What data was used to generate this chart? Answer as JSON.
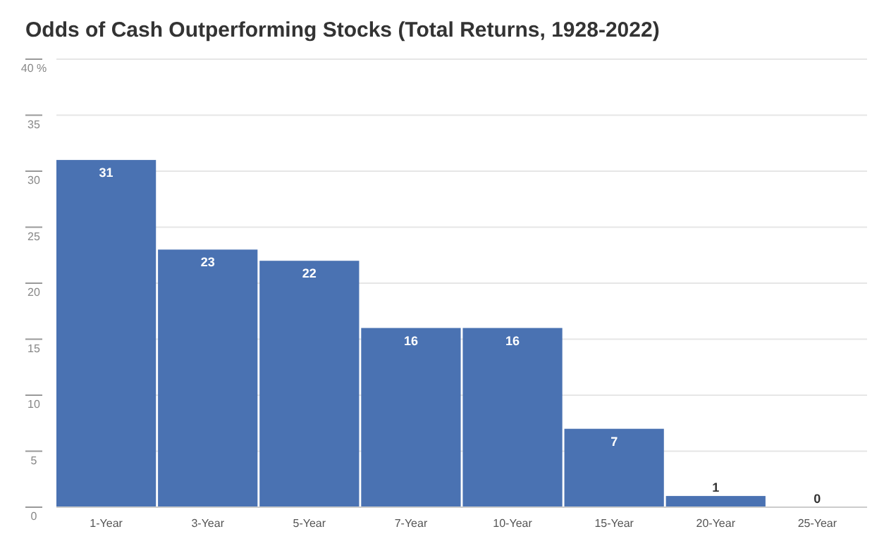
{
  "chart_data": {
    "type": "bar",
    "title": "Odds of Cash Outperforming Stocks (Total Returns, 1928-2022)",
    "categories": [
      "1-Year",
      "3-Year",
      "5-Year",
      "7-Year",
      "10-Year",
      "15-Year",
      "20-Year",
      "25-Year"
    ],
    "values": [
      31,
      23,
      22,
      16,
      16,
      7,
      1,
      0
    ],
    "color": "#4a72b2",
    "ylim": [
      0,
      40
    ],
    "yticks": [
      0,
      5,
      10,
      15,
      20,
      25,
      30,
      35,
      {
        "value": 40,
        "label": "40 %"
      }
    ],
    "grid": "y",
    "data_labels": true
  }
}
